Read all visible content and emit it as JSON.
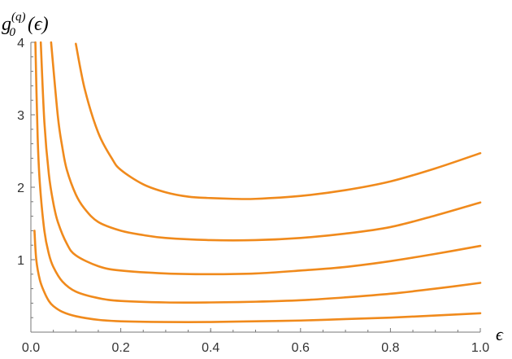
{
  "chart_data": {
    "type": "line",
    "xlabel": "ϵ",
    "ylabel": {
      "base": "g",
      "sub": "0",
      "sup": "(q)",
      "arg": "(ϵ)"
    },
    "xlim": [
      0,
      1.0
    ],
    "ylim": [
      0,
      4
    ],
    "x_ticks": [
      {
        "value": 0.0,
        "label": "0.0"
      },
      {
        "value": 0.2,
        "label": "0.2"
      },
      {
        "value": 0.4,
        "label": "0.4"
      },
      {
        "value": 0.6,
        "label": "0.6"
      },
      {
        "value": 0.8,
        "label": "0.8"
      },
      {
        "value": 1.0,
        "label": "1.0"
      }
    ],
    "y_ticks": [
      {
        "value": 1,
        "label": "1"
      },
      {
        "value": 2,
        "label": "2"
      },
      {
        "value": 3,
        "label": "3"
      },
      {
        "value": 4,
        "label": "4"
      }
    ],
    "grid": false,
    "color": "#f08a1c",
    "series": [
      {
        "x": [
          0.008,
          0.012,
          0.02,
          0.03,
          0.04,
          0.05,
          0.07,
          0.1,
          0.15,
          0.2,
          0.3,
          0.4,
          0.5,
          0.6,
          0.7,
          0.8,
          0.9,
          1.0
        ],
        "y": [
          1.4,
          1.0,
          0.72,
          0.55,
          0.43,
          0.36,
          0.28,
          0.22,
          0.17,
          0.15,
          0.14,
          0.14,
          0.15,
          0.16,
          0.18,
          0.2,
          0.23,
          0.26
        ]
      },
      {
        "x": [
          0.01,
          0.015,
          0.02,
          0.03,
          0.04,
          0.05,
          0.07,
          0.1,
          0.15,
          0.2,
          0.3,
          0.4,
          0.5,
          0.6,
          0.7,
          0.8,
          0.9,
          1.0
        ],
        "y": [
          4.0,
          2.7,
          2.05,
          1.4,
          1.08,
          0.9,
          0.7,
          0.56,
          0.47,
          0.43,
          0.41,
          0.41,
          0.42,
          0.44,
          0.48,
          0.53,
          0.6,
          0.68
        ]
      },
      {
        "x": [
          0.022,
          0.03,
          0.04,
          0.05,
          0.06,
          0.08,
          0.1,
          0.15,
          0.2,
          0.3,
          0.4,
          0.5,
          0.6,
          0.7,
          0.8,
          0.9,
          1.0
        ],
        "y": [
          4.0,
          2.9,
          2.18,
          1.78,
          1.52,
          1.22,
          1.06,
          0.91,
          0.85,
          0.81,
          0.8,
          0.81,
          0.85,
          0.9,
          0.98,
          1.08,
          1.19
        ]
      },
      {
        "x": [
          0.045,
          0.06,
          0.07,
          0.08,
          0.1,
          0.12,
          0.15,
          0.2,
          0.25,
          0.3,
          0.4,
          0.5,
          0.6,
          0.7,
          0.8,
          0.9,
          1.0
        ],
        "y": [
          4.0,
          2.98,
          2.55,
          2.24,
          1.9,
          1.7,
          1.52,
          1.4,
          1.34,
          1.3,
          1.27,
          1.27,
          1.3,
          1.36,
          1.45,
          1.61,
          1.79
        ]
      },
      {
        "x": [
          0.1,
          0.12,
          0.15,
          0.18,
          0.2,
          0.25,
          0.3,
          0.35,
          0.4,
          0.45,
          0.5,
          0.6,
          0.7,
          0.8,
          0.9,
          1.0
        ],
        "y": [
          3.98,
          3.35,
          2.75,
          2.4,
          2.24,
          2.04,
          1.93,
          1.87,
          1.85,
          1.84,
          1.84,
          1.88,
          1.96,
          2.08,
          2.26,
          2.47
        ]
      }
    ]
  }
}
